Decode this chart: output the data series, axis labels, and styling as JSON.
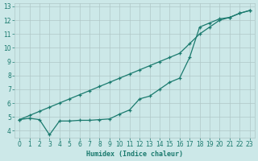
{
  "xlabel": "Humidex (Indice chaleur)",
  "ylabel": "",
  "background_color": "#cce8e8",
  "grid_color": "#b0c8c8",
  "line_color": "#1a7a6e",
  "xlim": [
    -0.5,
    23.5
  ],
  "ylim": [
    3.5,
    13.2
  ],
  "xticks": [
    0,
    1,
    2,
    3,
    4,
    5,
    6,
    7,
    8,
    9,
    10,
    11,
    12,
    13,
    14,
    15,
    16,
    17,
    18,
    19,
    20,
    21,
    22,
    23
  ],
  "yticks": [
    4,
    5,
    6,
    7,
    8,
    9,
    10,
    11,
    12,
    13
  ],
  "line1_x": [
    0,
    1,
    2,
    3,
    4,
    5,
    6,
    7,
    8,
    9,
    10,
    11,
    12,
    13,
    14,
    15,
    16,
    17,
    18,
    19,
    20,
    21,
    22,
    23
  ],
  "line1_y": [
    4.8,
    5.1,
    5.4,
    5.7,
    6.0,
    6.3,
    6.6,
    6.9,
    7.2,
    7.5,
    7.8,
    8.1,
    8.4,
    8.7,
    9.0,
    9.3,
    9.6,
    10.3,
    11.0,
    11.5,
    12.0,
    12.2,
    12.5,
    12.7
  ],
  "line2_x": [
    0,
    1,
    2,
    3,
    4,
    5,
    6,
    7,
    8,
    9,
    10,
    11,
    12,
    13,
    14,
    15,
    16,
    17,
    18,
    19,
    20,
    21,
    22,
    23
  ],
  "line2_y": [
    4.8,
    4.9,
    4.8,
    3.7,
    4.7,
    4.7,
    4.75,
    4.75,
    4.8,
    4.85,
    5.2,
    5.5,
    6.3,
    6.5,
    7.0,
    7.5,
    7.8,
    9.3,
    11.5,
    11.8,
    12.1,
    12.2,
    12.5,
    12.7
  ]
}
